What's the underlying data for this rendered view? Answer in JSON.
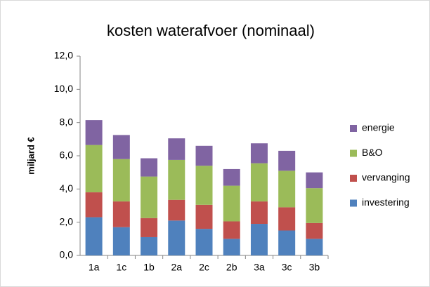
{
  "chart_data": {
    "type": "stacked-bar",
    "title": "kosten waterafvoer (nominaal)",
    "y_label": "miljard  €",
    "categories": [
      "1a",
      "1c",
      "1b",
      "2a",
      "2c",
      "2b",
      "3a",
      "3c",
      "3b"
    ],
    "series": [
      {
        "name": "investering",
        "color": "#4f81bd",
        "values": [
          2.3,
          1.7,
          1.1,
          2.1,
          1.6,
          1.0,
          1.9,
          1.5,
          1.0
        ]
      },
      {
        "name": "vervanging",
        "color": "#c0504d",
        "values": [
          1.5,
          1.55,
          1.15,
          1.25,
          1.45,
          1.05,
          1.35,
          1.4,
          0.95
        ]
      },
      {
        "name": "B&O",
        "color": "#9bbb59",
        "values": [
          2.85,
          2.55,
          2.5,
          2.4,
          2.35,
          2.15,
          2.3,
          2.2,
          2.1
        ]
      },
      {
        "name": "energie",
        "color": "#8064a2",
        "values": [
          1.5,
          1.45,
          1.1,
          1.3,
          1.2,
          1.0,
          1.2,
          1.2,
          0.95
        ]
      }
    ],
    "ylim": [
      0,
      12
    ],
    "yticks": [
      {
        "value": 0,
        "label": "0,0"
      },
      {
        "value": 2,
        "label": "2,0"
      },
      {
        "value": 4,
        "label": "4,0"
      },
      {
        "value": 6,
        "label": "6,0"
      },
      {
        "value": 8,
        "label": "8,0"
      },
      {
        "value": 10,
        "label": "10,0"
      },
      {
        "value": 12,
        "label": "12,0"
      }
    ],
    "legend": "right"
  }
}
